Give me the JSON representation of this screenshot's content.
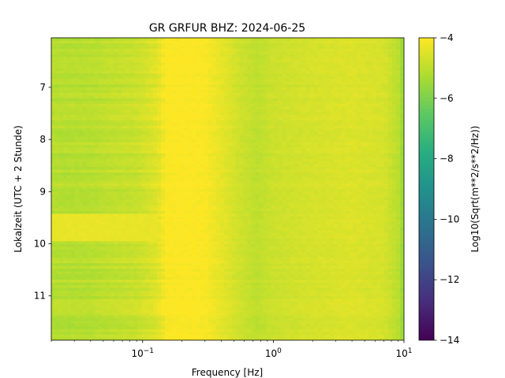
{
  "chart_data": {
    "type": "heatmap",
    "title": "GR GRFUR  BHZ: 2024-06-25",
    "xlabel": "Frequency [Hz]",
    "ylabel": "Lokalzeit (UTC + 2 Stunde)",
    "x_scale": "log",
    "xlim": [
      0.02,
      10
    ],
    "x_ticks": [
      {
        "value": 0.1,
        "base": "10",
        "exp": "−1"
      },
      {
        "value": 1,
        "base": "10",
        "exp": "0"
      },
      {
        "value": 10,
        "base": "10",
        "exp": "1"
      }
    ],
    "ylim": [
      6.05,
      11.85
    ],
    "y_inverted": true,
    "y_ticks": [
      {
        "value": 7,
        "label": "7"
      },
      {
        "value": 8,
        "label": "8"
      },
      {
        "value": 9,
        "label": "9"
      },
      {
        "value": 10,
        "label": "10"
      },
      {
        "value": 11,
        "label": "11"
      }
    ],
    "colormap": "viridis",
    "colorbar": {
      "label": "Log10(Sqrt(m**2/s**2/Hz))",
      "range": [
        -14,
        -4
      ],
      "ticks": [
        {
          "value": -4,
          "label": "−4"
        },
        {
          "value": -6,
          "label": "−6"
        },
        {
          "value": -8,
          "label": "−8"
        },
        {
          "value": -10,
          "label": "−10"
        },
        {
          "value": -12,
          "label": "−12"
        },
        {
          "value": -14,
          "label": "−14"
        }
      ]
    },
    "band_profile": [
      {
        "freq": 0.02,
        "value": -5.1
      },
      {
        "freq": 0.04,
        "value": -5.05
      },
      {
        "freq": 0.06,
        "value": -4.9
      },
      {
        "freq": 0.09,
        "value": -4.8
      },
      {
        "freq": 0.13,
        "value": -4.45
      },
      {
        "freq": 0.15,
        "value": -4.05
      },
      {
        "freq": 0.2,
        "value": -4.0
      },
      {
        "freq": 0.3,
        "value": -4.05
      },
      {
        "freq": 0.4,
        "value": -4.35
      },
      {
        "freq": 0.55,
        "value": -4.7
      },
      {
        "freq": 0.75,
        "value": -4.95
      },
      {
        "freq": 1.0,
        "value": -4.75
      },
      {
        "freq": 2.0,
        "value": -4.6
      },
      {
        "freq": 4.0,
        "value": -4.5
      },
      {
        "freq": 7.0,
        "value": -4.6
      },
      {
        "freq": 9.0,
        "value": -5.0
      },
      {
        "freq": 10.0,
        "value": -5.6
      }
    ],
    "elevated_time_window": {
      "start": 9.4,
      "end": 9.9,
      "freq_max": 0.13,
      "value": -4.3
    }
  }
}
